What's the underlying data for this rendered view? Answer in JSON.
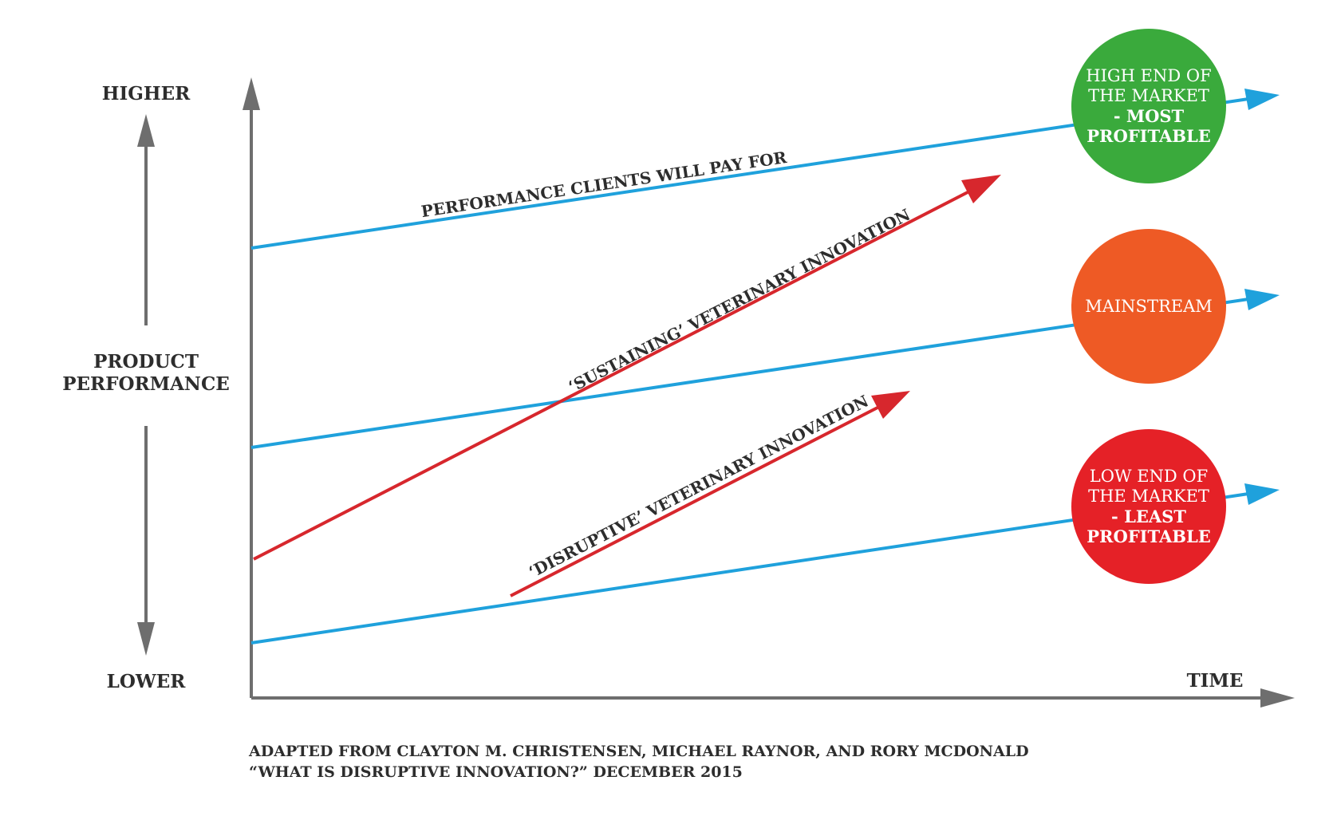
{
  "axis": {
    "higher": "HIGHER",
    "lower": "LOWER",
    "product_line1": "PRODUCT",
    "product_line2": "PERFORMANCE",
    "time": "TIME"
  },
  "lines": {
    "performance_clients": "PERFORMANCE CLIENTS WILL PAY FOR",
    "sustaining": "‘SUSTAINING’ VETERINARY INNOVATION",
    "disruptive": "‘DISRUPTIVE’ VETERINARY INNOVATION"
  },
  "circles": {
    "high": {
      "line1": "HIGH END OF",
      "line2": "THE MARKET",
      "line3": "- MOST",
      "line4": "PROFITABLE",
      "color": "#3aaa3c"
    },
    "mainstream": {
      "line1": "MAINSTREAM",
      "color": "#ee5a25"
    },
    "low": {
      "line1": "LOW END OF",
      "line2": "THE MARKET",
      "line3": "- LEAST",
      "line4": "PROFITABLE",
      "color": "#e52127"
    }
  },
  "colors": {
    "blue_line": "#1fa1dc",
    "red_line": "#d7272d",
    "axis": "#6e6e6e",
    "text": "#2d2d2d"
  },
  "citation": {
    "line1": "ADAPTED FROM CLAYTON M. CHRISTENSEN, MICHAEL RAYNOR, AND RORY MCDONALD",
    "line2": "“WHAT IS DISRUPTIVE INNOVATION?” DECEMBER 2015"
  }
}
